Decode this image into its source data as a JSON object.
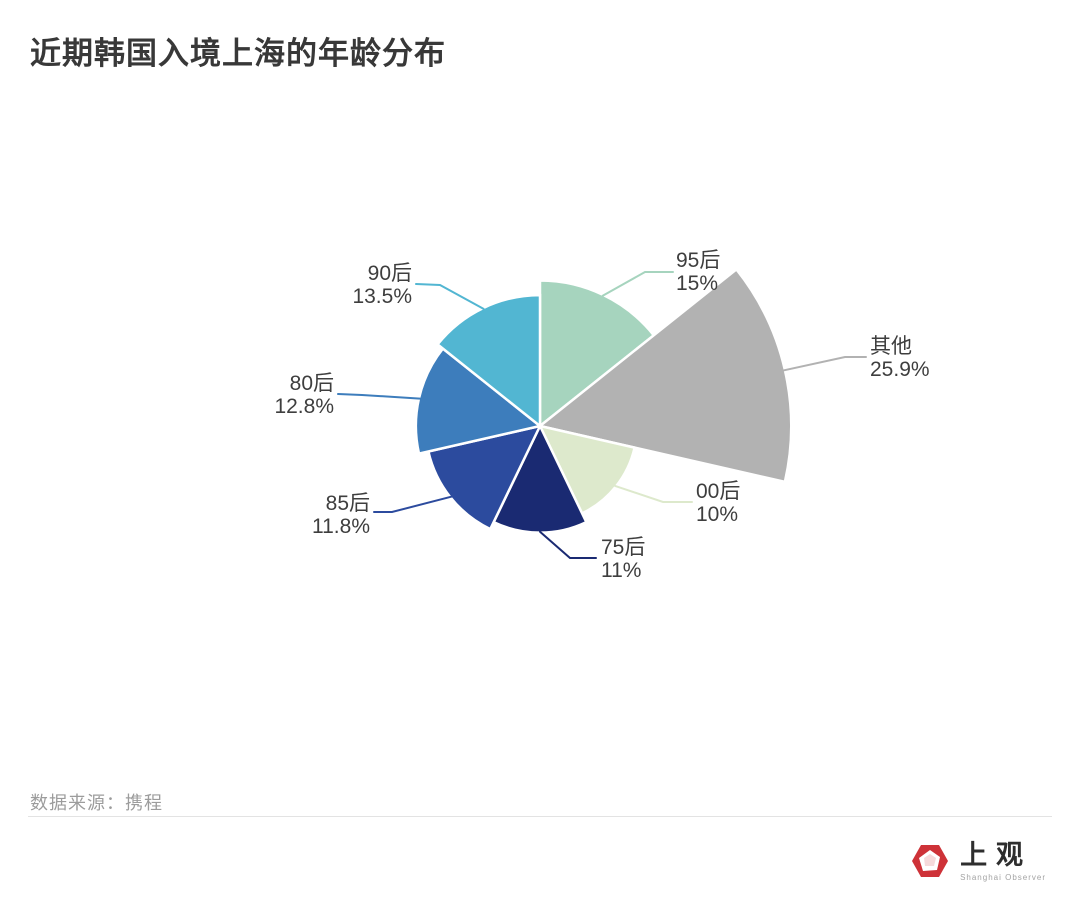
{
  "page": {
    "title": "近期韩国入境上海的年龄分布",
    "source": "数据来源：携程",
    "logo": {
      "name": "上观",
      "subtitle": "Shanghai Observer",
      "icon": "red-hexagon-aperture",
      "color": "#ce3238"
    }
  },
  "chart_data": {
    "type": "pie",
    "variant": "nightingale-rose-equal-angle",
    "title": "近期韩国入境上海的年龄分布",
    "unit": "%",
    "start_angle_deg": 0,
    "direction": "clockwise",
    "legend_position": "none",
    "grid": false,
    "slices": [
      {
        "label": "95后",
        "value": 15,
        "pct_label": "15%",
        "color": "#a6d4be"
      },
      {
        "label": "其他",
        "value": 25.9,
        "pct_label": "25.9%",
        "color": "#b2b2b2"
      },
      {
        "label": "00后",
        "value": 10,
        "pct_label": "10%",
        "color": "#dde9cc"
      },
      {
        "label": "75后",
        "value": 11,
        "pct_label": "11%",
        "color": "#1a2a72"
      },
      {
        "label": "85后",
        "value": 11.8,
        "pct_label": "11.8%",
        "color": "#2c4b9e"
      },
      {
        "label": "80后",
        "value": 12.8,
        "pct_label": "12.8%",
        "color": "#3d7dbc"
      },
      {
        "label": "90后",
        "value": 13.5,
        "pct_label": "13.5%",
        "color": "#52b6d2"
      }
    ]
  }
}
